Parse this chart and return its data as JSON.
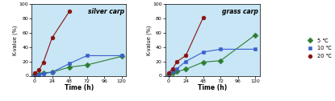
{
  "silver_carp": {
    "temp_5": {
      "x": [
        0,
        6,
        12,
        24,
        48,
        72,
        120
      ],
      "y": [
        2,
        3,
        4,
        5,
        12,
        15,
        27
      ],
      "color": "#2e7d32",
      "marker": "D",
      "label": "5 ℃"
    },
    "temp_10": {
      "x": [
        0,
        6,
        12,
        24,
        48,
        72,
        120
      ],
      "y": [
        1,
        2,
        3,
        5,
        17,
        28,
        28
      ],
      "color": "#3a5fcd",
      "marker": "s",
      "label": "10 ℃"
    },
    "temp_20": {
      "x": [
        0,
        6,
        12,
        24,
        48
      ],
      "y": [
        4,
        8,
        19,
        53,
        90
      ],
      "color": "#8b1010",
      "marker": "o",
      "label": "20 ℃"
    }
  },
  "grass_carp": {
    "temp_5": {
      "x": [
        0,
        6,
        12,
        24,
        48,
        72,
        120
      ],
      "y": [
        2,
        4,
        6,
        9,
        19,
        21,
        57
      ],
      "color": "#2e7d32",
      "marker": "D",
      "label": "5 ℃"
    },
    "temp_10": {
      "x": [
        0,
        6,
        12,
        24,
        48,
        72,
        120
      ],
      "y": [
        3,
        6,
        10,
        20,
        33,
        37,
        37
      ],
      "color": "#3a5fcd",
      "marker": "s",
      "label": "10 ℃"
    },
    "temp_20": {
      "x": [
        0,
        6,
        12,
        24,
        48
      ],
      "y": [
        4,
        10,
        20,
        28,
        81
      ],
      "color": "#8b1010",
      "marker": "o",
      "label": "20 ℃"
    }
  },
  "bg_color": "#c8e6f5",
  "xlim": [
    -4,
    126
  ],
  "ylim": [
    0,
    100
  ],
  "xticks": [
    0,
    24,
    48,
    72,
    96,
    120
  ],
  "yticks": [
    0,
    20,
    40,
    60,
    80,
    100
  ],
  "xlabel": "Time (h)",
  "ylabel": "K-value (%)",
  "title_left": "silver carp",
  "title_right": "grass carp",
  "legend_labels": [
    "5 ℃",
    "10 ℃",
    "20 ℃"
  ],
  "legend_colors": [
    "#2e7d32",
    "#3a5fcd",
    "#8b1010"
  ],
  "legend_markers": [
    "D",
    "s",
    "o"
  ],
  "markersize": 3.5,
  "linewidth": 0.8
}
